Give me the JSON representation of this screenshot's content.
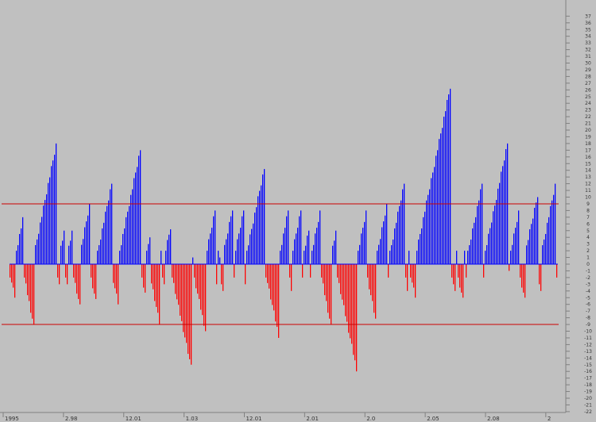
{
  "chart_data": {
    "type": "bar",
    "title": "",
    "xlabel": "",
    "ylabel": "",
    "ylim": [
      -23,
      37
    ],
    "grid": false,
    "legend": "none",
    "colors": {
      "background": "#c0c0c0",
      "positive": "#0000ff",
      "negative": "#ff0000",
      "reference_line": "#cc0000",
      "axis_text": "#333333"
    },
    "reference_lines": [
      9,
      -9
    ],
    "x_tick_labels": [
      "1995",
      "2.98",
      "12.01",
      "1.03",
      "12.01",
      "2.01",
      "2.0",
      "2.05",
      "2.08",
      "2"
    ],
    "y_tick_labels": [
      "37",
      "36",
      "35",
      "34",
      "33",
      "32",
      "31",
      "30",
      "29",
      "28",
      "27",
      "26",
      "25",
      "24",
      "23",
      "22",
      "21",
      "20",
      "19",
      "18",
      "17",
      "16",
      "15",
      "14",
      "13",
      "12",
      "11",
      "10",
      "9",
      "8",
      "7",
      "6",
      "5",
      "4",
      "3",
      "2",
      "1",
      "0",
      "-1",
      "-2",
      "-3",
      "-4",
      "-5",
      "-6",
      "-7",
      "-8",
      "-9",
      "-10",
      "-11",
      "-12",
      "-13",
      "-14",
      "-15",
      "-16",
      "-17",
      "-18",
      "-19",
      "-20",
      "-21",
      "-22",
      "-23"
    ],
    "bar_count": 345,
    "segments": [
      [
        -2,
        -5
      ],
      [
        2,
        7
      ],
      [
        -2,
        -9
      ],
      [
        2,
        18
      ],
      [
        -2,
        -3
      ],
      [
        2,
        5
      ],
      [
        -2,
        -3
      ],
      [
        2,
        5
      ],
      [
        -2,
        -6
      ],
      [
        2,
        9
      ],
      [
        -2,
        -6
      ],
      [
        2,
        12
      ],
      [
        -2,
        -6
      ],
      [
        2,
        17
      ],
      [
        -2,
        -5
      ],
      [
        2,
        4
      ],
      [
        -2,
        -9
      ],
      [
        2,
        1
      ],
      [
        -2,
        -3
      ],
      [
        2,
        6
      ],
      [
        -2,
        -15
      ],
      [
        2,
        1
      ],
      [
        -2,
        -10
      ],
      [
        2,
        8
      ],
      [
        -2,
        -3
      ],
      [
        2,
        1
      ],
      [
        -2,
        -4
      ],
      [
        2,
        8
      ],
      [
        -2,
        -2
      ],
      [
        2,
        8
      ],
      [
        -2,
        -3
      ],
      [
        2,
        15
      ],
      [
        -2,
        -11
      ],
      [
        2,
        8
      ],
      [
        -2,
        -4
      ],
      [
        2,
        8
      ],
      [
        -2,
        -3
      ],
      [
        2,
        5
      ],
      [
        -2,
        -2
      ],
      [
        2,
        8
      ],
      [
        -2,
        -9
      ],
      [
        2,
        5
      ],
      [
        -2,
        -16
      ],
      [
        2,
        8
      ],
      [
        -2,
        -9
      ],
      [
        2,
        9
      ],
      [
        -2,
        -3
      ],
      [
        2,
        12
      ],
      [
        -2,
        -4
      ],
      [
        2,
        3
      ],
      [
        -2,
        -5
      ],
      [
        2,
        27
      ],
      [
        -2,
        -4
      ],
      [
        2,
        2
      ],
      [
        -2,
        -5
      ],
      [
        2,
        2
      ],
      [
        -2,
        -3
      ],
      [
        2,
        12
      ],
      [
        -2,
        -3
      ],
      [
        2,
        18
      ],
      [
        -2,
        -1
      ],
      [
        2,
        8
      ],
      [
        -2,
        -5
      ],
      [
        2,
        10
      ],
      [
        -2,
        -4
      ],
      [
        2,
        12
      ],
      [
        -2,
        -1
      ]
    ]
  }
}
